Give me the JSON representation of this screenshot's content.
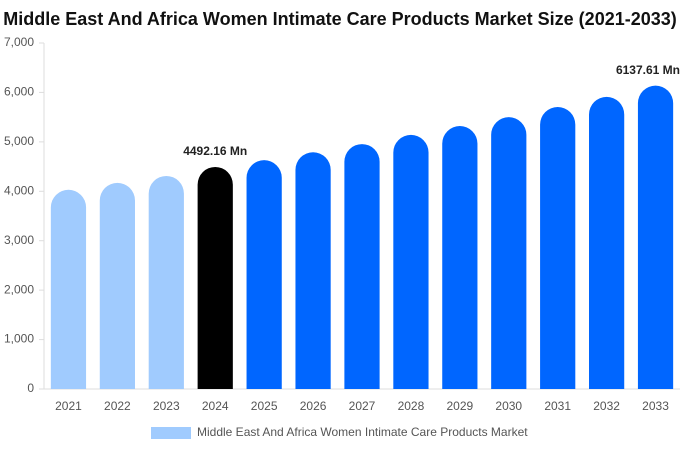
{
  "chart_data": {
    "type": "bar",
    "title": "Middle East And Africa Women Intimate Care Products Market Size (2021-2033)",
    "categories": [
      "2021",
      "2022",
      "2023",
      "2024",
      "2025",
      "2026",
      "2027",
      "2028",
      "2029",
      "2030",
      "2031",
      "2032",
      "2033"
    ],
    "series": [
      {
        "name": "Middle East And Africa Women Intimate Care Products Market",
        "color": "#a0cbfe",
        "values": [
          4030,
          4170,
          4310,
          4492.16,
          4630,
          4790,
          4955,
          5140,
          5320,
          5500,
          5705,
          5910,
          6137.61
        ],
        "value_labels": [
          null,
          null,
          null,
          "4492.16 Mn",
          null,
          null,
          null,
          null,
          null,
          null,
          null,
          null,
          "6137.61 Mn"
        ],
        "colors": [
          "#a0cbfe",
          "#a0cbfe",
          "#a0cbfe",
          "#000000",
          "#0066ff",
          "#0066ff",
          "#0066ff",
          "#0066ff",
          "#0066ff",
          "#0066ff",
          "#0066ff",
          "#0066ff",
          "#0066ff"
        ]
      }
    ],
    "ylim": [
      0,
      7000
    ],
    "yticks": [
      0,
      {
        "value": 1000,
        "label": "1,000"
      },
      {
        "value": 2000,
        "label": "2,000"
      },
      {
        "value": 3000,
        "label": "3,000"
      },
      {
        "value": 4000,
        "label": "4,000"
      },
      {
        "value": 5000,
        "label": "5,000"
      },
      {
        "value": 6000,
        "label": "6,000"
      },
      {
        "value": 7000,
        "label": "7,000"
      }
    ],
    "grid": false
  }
}
